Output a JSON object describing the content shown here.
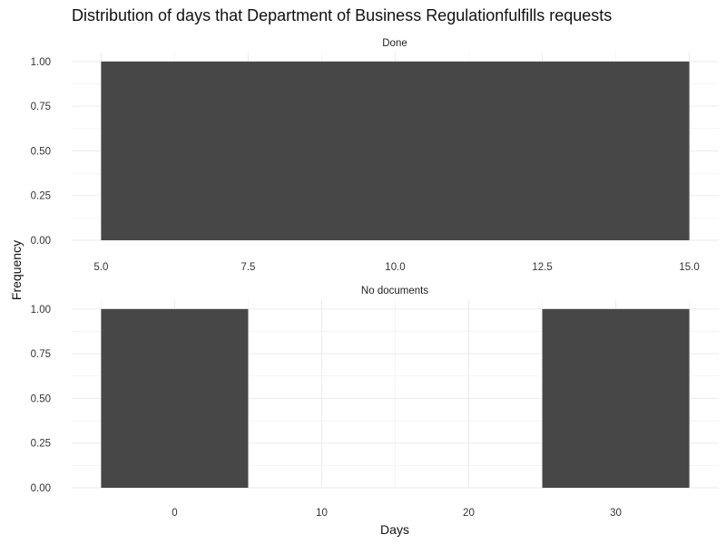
{
  "chart_data": {
    "type": "bar",
    "title": "Distribution of days that Department of Business Regulationfulfills requests",
    "xlabel": "Days",
    "ylabel": "Frequency",
    "grid": true,
    "bar_color": "#474747",
    "grid_color": "#ebebeb",
    "panels": [
      {
        "label": "Done",
        "xlim": [
          4.5,
          15.5
        ],
        "ylim": [
          0,
          1.05
        ],
        "x_ticks": [
          5.0,
          7.5,
          10.0,
          12.5,
          15.0
        ],
        "x_tick_labels": [
          "5.0",
          "7.5",
          "10.0",
          "12.5",
          "15.0"
        ],
        "y_ticks": [
          0,
          0.25,
          0.5,
          0.75,
          1
        ],
        "y_tick_labels": [
          "0.00",
          "0.25",
          "0.50",
          "0.75",
          "1.00"
        ],
        "bars": [
          {
            "x_start": 5,
            "x_end": 15,
            "count": 1
          }
        ]
      },
      {
        "label": "No documents",
        "xlim": [
          -7,
          37
        ],
        "ylim": [
          0,
          1.05
        ],
        "x_ticks": [
          0,
          10,
          20,
          30
        ],
        "x_tick_labels": [
          "0",
          "10",
          "20",
          "30"
        ],
        "y_ticks": [
          0,
          0.25,
          0.5,
          0.75,
          1
        ],
        "y_tick_labels": [
          "0.00",
          "0.25",
          "0.50",
          "0.75",
          "1.00"
        ],
        "bars": [
          {
            "x_start": -5,
            "x_end": 5,
            "count": 1
          },
          {
            "x_start": 25,
            "x_end": 35,
            "count": 1
          }
        ]
      }
    ]
  }
}
